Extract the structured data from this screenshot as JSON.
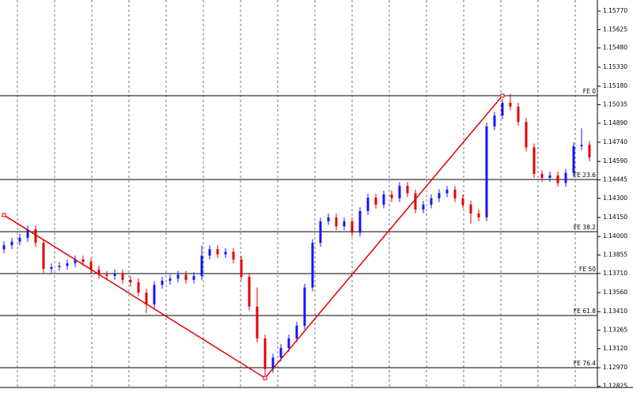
{
  "chart_data": {
    "type": "candlestick",
    "ylim": [
      1.12815,
      1.15857
    ],
    "yticks": [
      {
        "value": 1.1577,
        "label": "1.15770"
      },
      {
        "value": 1.15625,
        "label": "1.15625"
      },
      {
        "value": 1.1548,
        "label": "1.15480"
      },
      {
        "value": 1.1533,
        "label": "1.15330"
      },
      {
        "value": 1.1518,
        "label": "1.15180"
      },
      {
        "value": 1.15035,
        "label": "1.15035"
      },
      {
        "value": 1.1489,
        "label": "1.14890"
      },
      {
        "value": 1.1474,
        "label": "1.14740"
      },
      {
        "value": 1.1459,
        "label": "1.14590"
      },
      {
        "value": 1.14445,
        "label": "1.14445"
      },
      {
        "value": 1.143,
        "label": "1.14300"
      },
      {
        "value": 1.1415,
        "label": "1.14150"
      },
      {
        "value": 1.14,
        "label": "1.14000"
      },
      {
        "value": 1.13855,
        "label": "1.13855"
      },
      {
        "value": 1.1371,
        "label": "1.13710"
      },
      {
        "value": 1.1356,
        "label": "1.13560"
      },
      {
        "value": 1.1341,
        "label": "1.13410"
      },
      {
        "value": 1.13265,
        "label": "1.13265"
      },
      {
        "value": 1.1312,
        "label": "1.13120"
      },
      {
        "value": 1.1297,
        "label": "1.12970"
      },
      {
        "value": 1.12825,
        "label": "1.12825"
      }
    ],
    "up_color": "#1414ff",
    "down_color": "#e00000",
    "line_color": "#e00000",
    "open": [
      1.139,
      1.13932,
      1.1396,
      1.1399,
      1.14057,
      1.1395,
      1.13746,
      1.1376,
      1.1377,
      1.1379,
      1.1382,
      1.138,
      1.1374,
      1.137,
      1.1369,
      1.1371,
      1.1366,
      1.1364,
      1.1356,
      1.13467,
      1.1362,
      1.13653,
      1.1367,
      1.137,
      1.1366,
      1.1369,
      1.1385,
      1.13901,
      1.1386,
      1.1388,
      1.1382,
      1.13684,
      1.1345,
      1.132,
      1.1296,
      1.1305,
      1.13125,
      1.132,
      1.133,
      1.136,
      1.1395,
      1.14119,
      1.1415,
      1.1408,
      1.1412,
      1.1403,
      1.142,
      1.14305,
      1.1425,
      1.1433,
      1.143,
      1.14398,
      1.1434,
      1.14212,
      1.1425,
      1.143,
      1.1434,
      1.14367,
      1.143,
      1.1425,
      1.14181,
      1.1415,
      1.14864,
      1.1495,
      1.1505,
      1.1502,
      1.149,
      1.147,
      1.14491,
      1.1446,
      1.1448,
      1.1442,
      1.145,
      1.14709,
      1.1472
    ],
    "high": [
      1.13962,
      1.1399,
      1.1402,
      1.14087,
      1.14087,
      1.1398,
      1.1379,
      1.138,
      1.1382,
      1.1385,
      1.1385,
      1.1383,
      1.1377,
      1.1373,
      1.1374,
      1.1374,
      1.1369,
      1.1367,
      1.1359,
      1.1365,
      1.13683,
      1.137,
      1.1373,
      1.1373,
      1.1372,
      1.1393,
      1.13931,
      1.13931,
      1.1391,
      1.1391,
      1.1385,
      1.13714,
      1.136,
      1.1323,
      1.1308,
      1.13155,
      1.1323,
      1.1333,
      1.1363,
      1.1398,
      1.14149,
      1.1418,
      1.1418,
      1.1415,
      1.1415,
      1.1423,
      1.14335,
      1.14335,
      1.1436,
      1.1436,
      1.14428,
      1.14428,
      1.1437,
      1.1428,
      1.1433,
      1.1437,
      1.14397,
      1.14397,
      1.1433,
      1.1428,
      1.14211,
      1.14894,
      1.1498,
      1.1508,
      1.1512,
      1.1505,
      1.1493,
      1.1473,
      1.14521,
      1.1451,
      1.1451,
      1.1453,
      1.14739,
      1.1485,
      1.1475
    ],
    "low": [
      1.1387,
      1.13902,
      1.1393,
      1.1396,
      1.1392,
      1.13716,
      1.13716,
      1.1373,
      1.1374,
      1.1376,
      1.1377,
      1.1371,
      1.1367,
      1.1366,
      1.1366,
      1.1363,
      1.1361,
      1.1353,
      1.134,
      1.13437,
      1.1359,
      1.13623,
      1.1364,
      1.1363,
      1.1363,
      1.1366,
      1.1382,
      1.1383,
      1.1383,
      1.1379,
      1.13654,
      1.1342,
      1.1317,
      1.129,
      1.1293,
      1.1302,
      1.13095,
      1.1317,
      1.1327,
      1.1357,
      1.1392,
      1.14089,
      1.1405,
      1.1405,
      1.14,
      1.14,
      1.1417,
      1.1422,
      1.1422,
      1.1427,
      1.1427,
      1.1431,
      1.14182,
      1.14182,
      1.1422,
      1.1427,
      1.1431,
      1.1427,
      1.1422,
      1.141,
      1.1412,
      1.1412,
      1.14834,
      1.1492,
      1.1499,
      1.1487,
      1.1467,
      1.14461,
      1.1443,
      1.1443,
      1.1439,
      1.1439,
      1.1447,
      1.14679,
      1.1459
    ],
    "close": [
      1.13932,
      1.1396,
      1.1399,
      1.14057,
      1.1395,
      1.13746,
      1.1376,
      1.1377,
      1.1379,
      1.1382,
      1.138,
      1.1374,
      1.137,
      1.1369,
      1.1371,
      1.1366,
      1.1364,
      1.1356,
      1.13467,
      1.1362,
      1.13653,
      1.1367,
      1.137,
      1.1366,
      1.1369,
      1.1385,
      1.13901,
      1.1386,
      1.1388,
      1.1382,
      1.13684,
      1.1345,
      1.132,
      1.1296,
      1.1305,
      1.13125,
      1.132,
      1.133,
      1.136,
      1.1395,
      1.14119,
      1.1415,
      1.1408,
      1.1412,
      1.1403,
      1.142,
      1.14305,
      1.1425,
      1.1433,
      1.143,
      1.14398,
      1.1434,
      1.14212,
      1.1425,
      1.143,
      1.1434,
      1.14367,
      1.143,
      1.1425,
      1.14181,
      1.1415,
      1.14864,
      1.1495,
      1.1505,
      1.1502,
      1.149,
      1.147,
      1.14491,
      1.1446,
      1.1448,
      1.1442,
      1.145,
      1.14709,
      1.1472,
      1.1462
    ],
    "fibo_levels": [
      {
        "label": "FE 0",
        "price": 1.15106
      },
      {
        "label": "FE 23.6",
        "price": 1.14448
      },
      {
        "label": "FE 38.2",
        "price": 1.14038
      },
      {
        "label": "FE 50",
        "price": 1.13709
      },
      {
        "label": "FE 61.8",
        "price": 1.1338
      },
      {
        "label": "FE 76.4",
        "price": 1.1297
      }
    ],
    "fibo_anchors": [
      {
        "bar": 0,
        "price": 1.14168
      },
      {
        "bar": 33,
        "price": 1.12889
      },
      {
        "bar": 63,
        "price": 1.15106
      }
    ]
  }
}
